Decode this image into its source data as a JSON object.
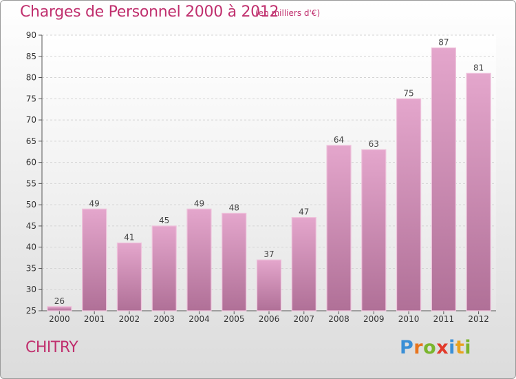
{
  "title": "Charges de Personnel 2000 à 2012",
  "subtitle": "(en milliers d'€)",
  "city": "CHITRY",
  "logo": {
    "letters": [
      "P",
      "r",
      "o",
      "x",
      "i",
      "t",
      "i"
    ],
    "colors": [
      "#3a8fd6",
      "#e8741e",
      "#7ab52d",
      "#e23a2a",
      "#3a8fd6",
      "#e8a21e",
      "#7ab52d"
    ]
  },
  "colors": {
    "accent": "#c0306e",
    "bar_top": "#e4a6cc",
    "bar_bottom": "#b07097"
  },
  "chart_data": {
    "type": "bar",
    "title": "Charges de Personnel 2000 à 2012",
    "subtitle": "(en milliers d'€)",
    "categories": [
      "2000",
      "2001",
      "2002",
      "2003",
      "2004",
      "2005",
      "2006",
      "2007",
      "2008",
      "2009",
      "2010",
      "2011",
      "2012"
    ],
    "values": [
      26,
      49,
      41,
      45,
      49,
      48,
      37,
      47,
      64,
      63,
      75,
      87,
      81
    ],
    "ylim": [
      25,
      90
    ],
    "yticks": [
      25,
      30,
      35,
      40,
      45,
      50,
      55,
      60,
      65,
      70,
      75,
      80,
      85,
      90
    ],
    "grid": true
  }
}
